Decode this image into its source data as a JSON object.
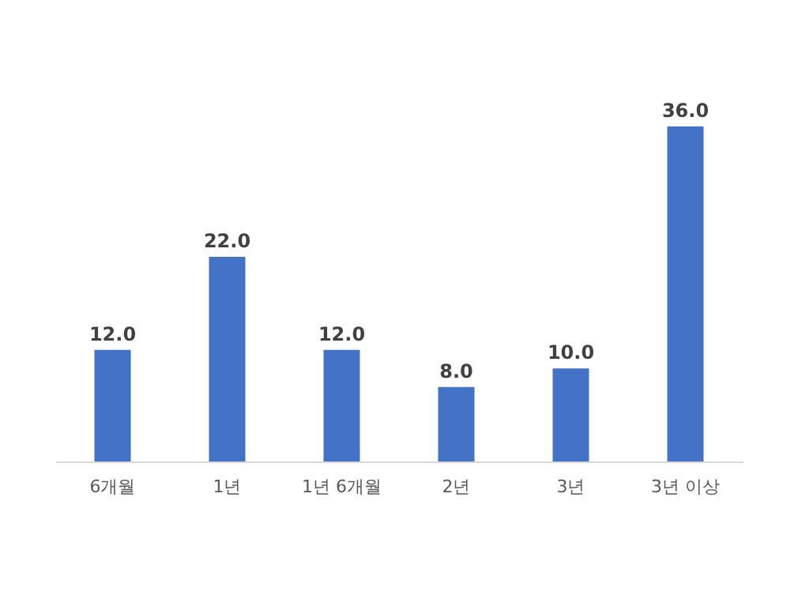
{
  "chart_data": {
    "type": "bar",
    "categories": [
      "6개월",
      "1년",
      "1년 6개월",
      "2년",
      "3년",
      "3년 이상"
    ],
    "values": [
      12.0,
      22.0,
      12.0,
      8.0,
      10.0,
      36.0
    ],
    "color": "#4472c4",
    "value_labels": [
      "12.0",
      "22.0",
      "12.0",
      "8.0",
      "10.0",
      "36.0"
    ]
  }
}
